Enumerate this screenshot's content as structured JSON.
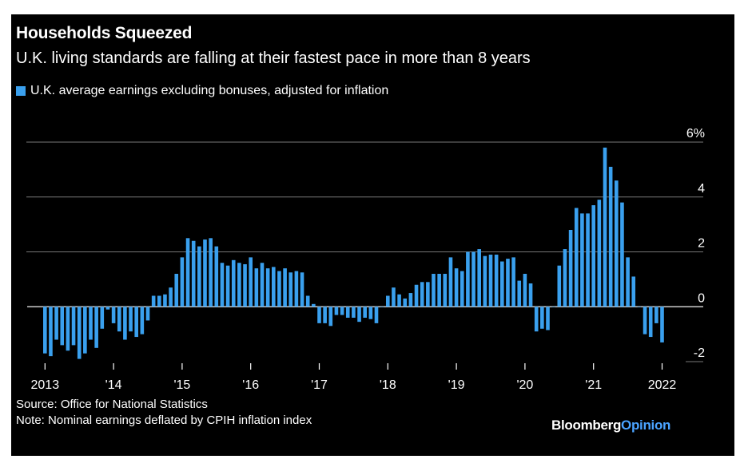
{
  "chart_data": {
    "type": "bar",
    "title": "Households Squeezed",
    "subtitle": "U.K. living standards are falling at their fastest pace in more than 8 years",
    "legend": "U.K. average earnings excluding bonuses, adjusted for inflation",
    "series_color": "#3aa0ee",
    "grid_color": "#777777",
    "ylim": [
      -2,
      6
    ],
    "y_ticks": [
      6,
      4,
      2,
      0,
      -2
    ],
    "y_tick_labels": [
      "6%",
      "4",
      "2",
      "0",
      "-2"
    ],
    "x_tick_labels": [
      "2013",
      "'14",
      "'15",
      "'16",
      "'17",
      "'18",
      "'19",
      "'20",
      "'21",
      "2022"
    ],
    "x_start": 2013.0,
    "values": [
      -1.7,
      -1.8,
      -1.2,
      -1.4,
      -1.6,
      -1.4,
      -1.9,
      -1.7,
      -1.2,
      -1.5,
      -0.8,
      -0.1,
      -0.6,
      -0.9,
      -1.2,
      -0.9,
      -1.1,
      -1.0,
      -0.5,
      0.4,
      0.4,
      0.45,
      0.7,
      1.2,
      1.8,
      2.5,
      2.4,
      2.2,
      2.45,
      2.5,
      2.2,
      1.6,
      1.5,
      1.7,
      1.6,
      1.55,
      1.8,
      1.4,
      1.6,
      1.4,
      1.45,
      1.3,
      1.4,
      1.25,
      1.3,
      1.25,
      0.4,
      0.1,
      -0.6,
      -0.6,
      -0.7,
      -0.3,
      -0.3,
      -0.4,
      -0.4,
      -0.55,
      -0.4,
      -0.45,
      -0.6,
      -0.0,
      0.4,
      0.7,
      0.45,
      0.3,
      0.5,
      0.8,
      0.9,
      0.9,
      1.2,
      1.2,
      1.2,
      1.8,
      1.4,
      1.3,
      2.0,
      2.0,
      2.1,
      1.85,
      1.9,
      1.9,
      1.65,
      1.75,
      1.8,
      0.95,
      1.2,
      0.85,
      -0.9,
      -0.8,
      -0.85,
      -0.0,
      1.5,
      2.1,
      2.8,
      3.6,
      3.4,
      3.4,
      3.7,
      3.9,
      5.8,
      5.1,
      4.6,
      3.8,
      1.8,
      1.1,
      -0.0,
      -1.0,
      -1.1,
      -0.6,
      -1.3
    ]
  },
  "source": "Source: Office for National Statistics",
  "note": "Note: Nominal earnings deflated by CPIH inflation index",
  "brand": {
    "part1": "Bloomberg",
    "part2": "Opinion"
  }
}
